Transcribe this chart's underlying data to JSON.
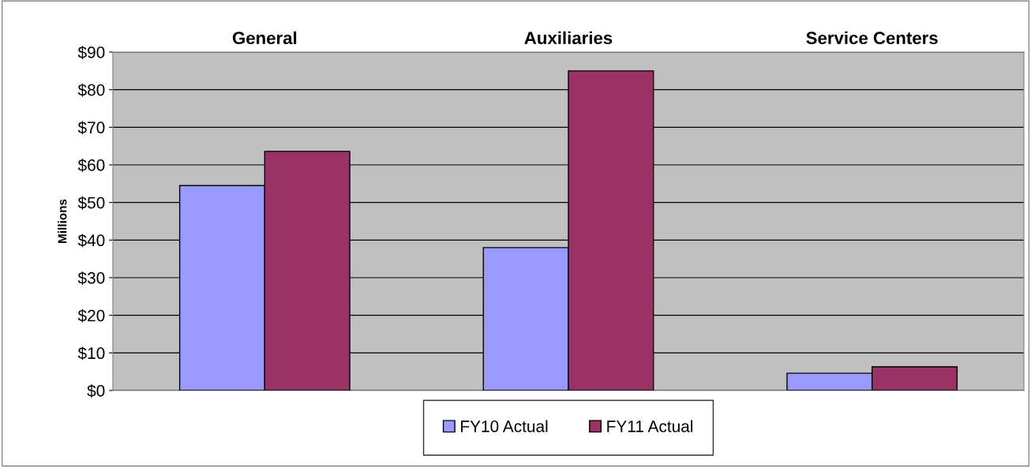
{
  "chart_data": {
    "type": "bar",
    "ylabel": "Millions",
    "categories": [
      "General",
      "Auxiliaries",
      "Service Centers"
    ],
    "series": [
      {
        "name": "FY10 Actual",
        "color": "#9999ff",
        "values": [
          54.5,
          38.0,
          4.6
        ]
      },
      {
        "name": "FY11 Actual",
        "color": "#993366",
        "values": [
          63.6,
          85.0,
          6.3
        ]
      }
    ],
    "ylim": [
      0,
      90
    ],
    "yticks": [
      {
        "value": 0,
        "label": "$0"
      },
      {
        "value": 10,
        "label": "$10"
      },
      {
        "value": 20,
        "label": "$20"
      },
      {
        "value": 30,
        "label": "$30"
      },
      {
        "value": 40,
        "label": "$40"
      },
      {
        "value": 50,
        "label": "$50"
      },
      {
        "value": 60,
        "label": "$60"
      },
      {
        "value": 70,
        "label": "$70"
      },
      {
        "value": 80,
        "label": "$80"
      },
      {
        "value": 90,
        "label": "$90"
      }
    ],
    "grid": "y",
    "legend": "bottom"
  }
}
